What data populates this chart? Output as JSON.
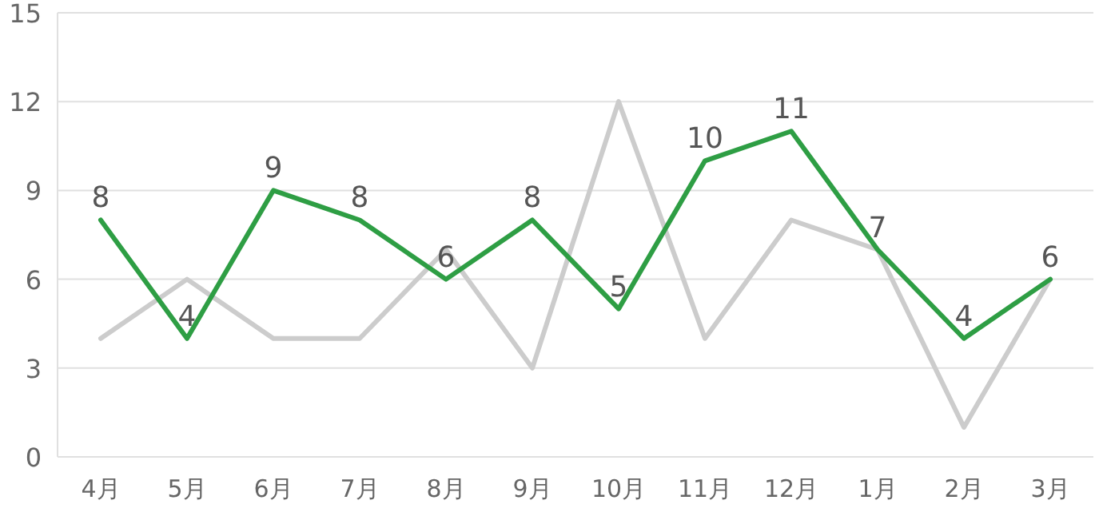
{
  "chart_data": {
    "type": "line",
    "categories": [
      "4月",
      "5月",
      "6月",
      "7月",
      "8月",
      "9月",
      "10月",
      "11月",
      "12月",
      "1月",
      "2月",
      "3月"
    ],
    "series": [
      {
        "color": "#cccccc",
        "values": [
          4,
          6,
          4,
          4,
          7,
          3,
          12,
          4,
          8,
          7,
          1,
          6
        ]
      },
      {
        "color": "#2e9e44",
        "values": [
          8,
          4,
          9,
          8,
          6,
          8,
          5,
          10,
          11,
          7,
          4,
          6
        ],
        "value_labels": [
          "8",
          "4",
          "9",
          "8",
          "6",
          "8",
          "5",
          "10",
          "11",
          "7",
          "4",
          "6"
        ]
      }
    ],
    "ylim": [
      0,
      15
    ],
    "yticks": [
      0,
      3,
      6,
      9,
      12,
      15
    ],
    "grid": "y",
    "marker": "none",
    "line_style": "solid"
  }
}
